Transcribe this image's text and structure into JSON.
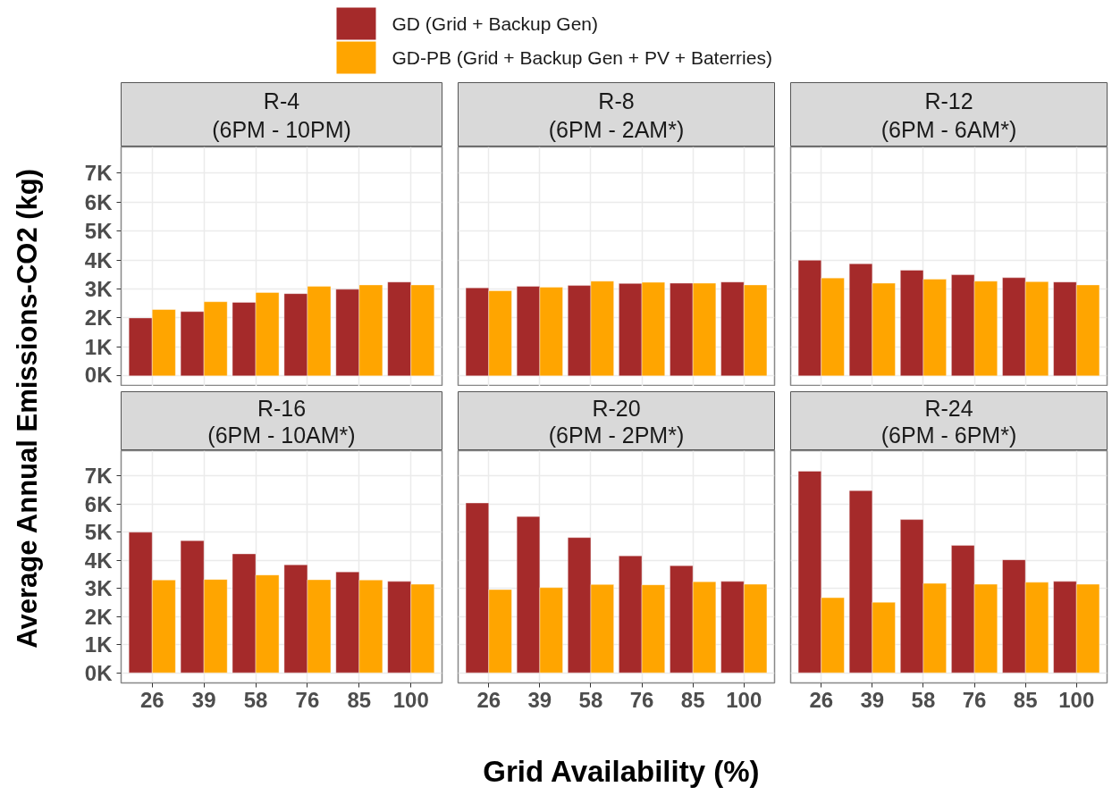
{
  "chart_data": [
    {
      "type": "bar",
      "title": "R-4",
      "subtitle": "(6PM - 10PM)",
      "ylabel": "Average Annual Emissions-CO2  (kg)",
      "legend": "top",
      "tick_labels": "y",
      "grid": true,
      "categories": [
        "26",
        "39",
        "58",
        "76",
        "85",
        "100"
      ],
      "ylim": [
        -360,
        7900
      ],
      "yticks": [
        {
          "value": 0,
          "label": "0K"
        },
        {
          "value": 1000,
          "label": "1K"
        },
        {
          "value": 2000,
          "label": "2K"
        },
        {
          "value": 3000,
          "label": "3K"
        },
        {
          "value": 4000,
          "label": "4K"
        },
        {
          "value": 5000,
          "label": "5K"
        },
        {
          "value": 6000,
          "label": "6K"
        },
        {
          "value": 7000,
          "label": "7K"
        }
      ],
      "series": [
        {
          "name": "GD (Grid + Backup Gen)",
          "color": "#a52a2a",
          "values": [
            2000,
            2220,
            2540,
            2840,
            2990,
            3240
          ]
        },
        {
          "name": "GD-PB (Grid + Backup Gen + PV + Baterries)",
          "color": "#ffa500",
          "values": [
            2290,
            2560,
            2880,
            3090,
            3140,
            3140
          ]
        }
      ]
    },
    {
      "type": "bar",
      "title": "R-8",
      "subtitle": "(6PM - 2AM*)",
      "tick_labels": false,
      "grid": true,
      "categories": [
        "26",
        "39",
        "58",
        "76",
        "85",
        "100"
      ],
      "ylim": [
        -360,
        7900
      ],
      "yticks": [
        0,
        1000,
        2000,
        3000,
        4000,
        5000,
        6000,
        7000
      ],
      "series": [
        {
          "color": "#a52a2a",
          "values": [
            3040,
            3090,
            3120,
            3190,
            3200,
            3240
          ]
        },
        {
          "color": "#ffa500",
          "values": [
            2940,
            3060,
            3270,
            3230,
            3200,
            3140
          ]
        }
      ]
    },
    {
      "type": "bar",
      "title": "R-12",
      "subtitle": "(6PM - 6AM*)",
      "tick_labels": false,
      "grid": true,
      "categories": [
        "26",
        "39",
        "58",
        "76",
        "85",
        "100"
      ],
      "ylim": [
        -360,
        7900
      ],
      "yticks": [
        0,
        1000,
        2000,
        3000,
        4000,
        5000,
        6000,
        7000
      ],
      "series": [
        {
          "color": "#a52a2a",
          "values": [
            3990,
            3870,
            3650,
            3490,
            3390,
            3240
          ]
        },
        {
          "color": "#ffa500",
          "values": [
            3380,
            3200,
            3340,
            3270,
            3250,
            3140
          ]
        }
      ]
    },
    {
      "type": "bar",
      "title": "R-16",
      "subtitle": "(6PM - 10AM*)",
      "grid": true,
      "categories": [
        "26",
        "39",
        "58",
        "76",
        "85",
        "100"
      ],
      "ylim": [
        -360,
        7900
      ],
      "yticks": [
        {
          "value": 0,
          "label": "0K"
        },
        {
          "value": 1000,
          "label": "1K"
        },
        {
          "value": 2000,
          "label": "2K"
        },
        {
          "value": 3000,
          "label": "3K"
        },
        {
          "value": 4000,
          "label": "4K"
        },
        {
          "value": 5000,
          "label": "5K"
        },
        {
          "value": 6000,
          "label": "6K"
        },
        {
          "value": 7000,
          "label": "7K"
        }
      ],
      "series": [
        {
          "color": "#a52a2a",
          "values": [
            5000,
            4700,
            4230,
            3840,
            3590,
            3250
          ]
        },
        {
          "color": "#ffa500",
          "values": [
            3300,
            3320,
            3480,
            3310,
            3300,
            3150
          ]
        }
      ]
    },
    {
      "type": "bar",
      "title": "R-20",
      "subtitle": "(6PM - 2PM*)",
      "xlabel": "Grid Availability (%)",
      "tick_labels": "x",
      "grid": true,
      "categories": [
        "26",
        "39",
        "58",
        "76",
        "85",
        "100"
      ],
      "ylim": [
        -360,
        7900
      ],
      "yticks": [
        0,
        1000,
        2000,
        3000,
        4000,
        5000,
        6000,
        7000
      ],
      "series": [
        {
          "color": "#a52a2a",
          "values": [
            6040,
            5560,
            4810,
            4160,
            3810,
            3250
          ]
        },
        {
          "color": "#ffa500",
          "values": [
            2960,
            3030,
            3140,
            3130,
            3240,
            3150
          ]
        }
      ]
    },
    {
      "type": "bar",
      "title": "R-24",
      "subtitle": "(6PM - 6PM*)",
      "tick_labels": "x",
      "grid": true,
      "categories": [
        "26",
        "39",
        "58",
        "76",
        "85",
        "100"
      ],
      "ylim": [
        -360,
        7900
      ],
      "yticks": [
        0,
        1000,
        2000,
        3000,
        4000,
        5000,
        6000,
        7000
      ],
      "series": [
        {
          "color": "#a52a2a",
          "values": [
            7170,
            6480,
            5450,
            4530,
            4020,
            3250
          ]
        },
        {
          "color": "#ffa500",
          "values": [
            2670,
            2510,
            3180,
            3150,
            3220,
            3150
          ]
        }
      ]
    }
  ]
}
